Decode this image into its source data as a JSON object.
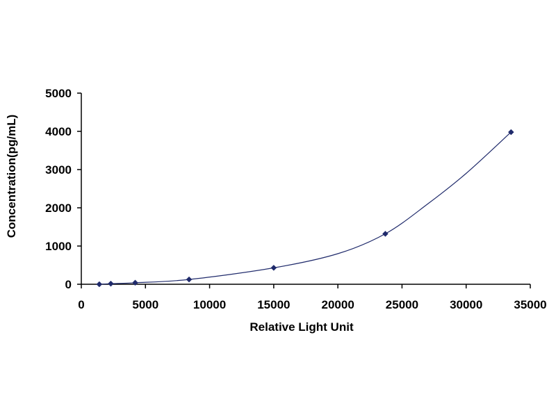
{
  "chart_data": {
    "type": "scatter",
    "title": "",
    "xlabel": "Relative Light Unit",
    "ylabel": "Concentration(pg/mL)",
    "xlim": [
      0,
      35000
    ],
    "ylim": [
      0,
      5000
    ],
    "x_ticks": [
      "0",
      "5000",
      "10000",
      "15000",
      "20000",
      "25000",
      "30000",
      "35000"
    ],
    "y_ticks": [
      "0",
      "1000",
      "2000",
      "3000",
      "4000",
      "5000"
    ],
    "grid": false,
    "legend": "none",
    "marker_color": "#1f2a6b",
    "line_color": "#1f2a6b",
    "series": [
      {
        "x": [
          1400,
          2300,
          4200,
          8400,
          15000,
          23700,
          33500
        ],
        "y": [
          0,
          15,
          40,
          125,
          430,
          1320,
          3980
        ]
      }
    ],
    "trendline": {
      "x": [
        1400,
        2300,
        4200,
        8400,
        15000,
        20000,
        23700,
        27000,
        30000,
        33500
      ],
      "y": [
        0,
        15,
        40,
        125,
        430,
        800,
        1320,
        2100,
        2900,
        3980
      ]
    }
  }
}
